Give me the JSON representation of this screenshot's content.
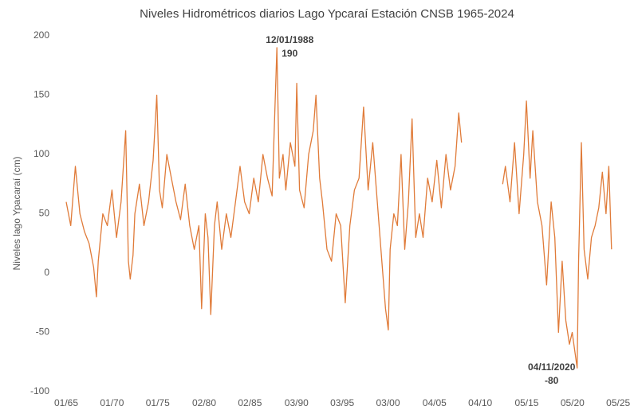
{
  "chart_data": {
    "type": "line",
    "title": "Niveles Hidrométricos diarios Lago Ypcaraí Estación CNSB 1965-2024",
    "y_label": "Niveles lago Ypacaraí (cm)",
    "x": [
      1965.0,
      1965.5,
      1966.0,
      1966.5,
      1967.0,
      1967.5,
      1968.0,
      1968.3,
      1968.5,
      1969.0,
      1969.5,
      1970.0,
      1970.5,
      1971.0,
      1971.5,
      1971.8,
      1972.0,
      1972.3,
      1972.5,
      1973.0,
      1973.5,
      1974.0,
      1974.5,
      1974.9,
      1975.2,
      1975.5,
      1976.0,
      1976.5,
      1977.0,
      1977.5,
      1978.0,
      1978.5,
      1979.0,
      1979.5,
      1979.8,
      1980.2,
      1980.5,
      1980.8,
      1981.2,
      1981.5,
      1982.0,
      1982.5,
      1983.0,
      1983.5,
      1984.0,
      1984.5,
      1985.0,
      1985.5,
      1986.0,
      1986.5,
      1987.0,
      1987.5,
      1988.03,
      1988.3,
      1988.7,
      1989.0,
      1989.5,
      1990.0,
      1990.2,
      1990.5,
      1991.0,
      1991.5,
      1992.0,
      1992.3,
      1992.7,
      1993.0,
      1993.5,
      1994.0,
      1994.5,
      1995.0,
      1995.5,
      1996.0,
      1996.5,
      1997.0,
      1997.5,
      1998.0,
      1998.5,
      1999.0,
      1999.5,
      1999.9,
      2000.2,
      2000.4,
      2000.8,
      2001.2,
      2001.6,
      2002.0,
      2002.4,
      2002.8,
      2003.2,
      2003.6,
      2004.0,
      2004.5,
      2005.0,
      2005.5,
      2006.0,
      2006.5,
      2007.0,
      2007.5,
      2007.9,
      2008.2,
      2010.5,
      2012.7,
      2013.0,
      2013.5,
      2014.0,
      2014.5,
      2015.0,
      2015.3,
      2015.7,
      2016.0,
      2016.5,
      2017.0,
      2017.5,
      2018.0,
      2018.4,
      2018.8,
      2019.2,
      2019.6,
      2020.0,
      2020.3,
      2020.84,
      2021.0,
      2021.3,
      2021.6,
      2022.0,
      2022.4,
      2022.8,
      2023.2,
      2023.6,
      2024.0,
      2024.3,
      2024.6
    ],
    "series": [
      {
        "name": "Nivel",
        "color": "#e07b39",
        "values": [
          60,
          40,
          90,
          50,
          35,
          25,
          5,
          -20,
          10,
          50,
          40,
          70,
          30,
          60,
          120,
          10,
          -5,
          15,
          50,
          75,
          40,
          60,
          95,
          150,
          70,
          55,
          100,
          80,
          60,
          45,
          75,
          40,
          20,
          40,
          -30,
          50,
          30,
          -35,
          40,
          60,
          20,
          50,
          30,
          60,
          90,
          60,
          50,
          80,
          60,
          100,
          80,
          65,
          190,
          80,
          100,
          70,
          110,
          90,
          160,
          70,
          55,
          100,
          120,
          150,
          80,
          60,
          20,
          10,
          50,
          40,
          -25,
          40,
          70,
          80,
          140,
          70,
          110,
          60,
          10,
          -30,
          -48,
          20,
          50,
          40,
          100,
          20,
          60,
          130,
          30,
          50,
          30,
          80,
          60,
          95,
          55,
          100,
          70,
          90,
          135,
          110,
          null,
          75,
          90,
          60,
          110,
          50,
          100,
          145,
          80,
          120,
          60,
          40,
          -10,
          60,
          30,
          -50,
          10,
          -40,
          -60,
          -50,
          -80,
          10,
          110,
          20,
          -5,
          30,
          40,
          55,
          85,
          50,
          90,
          20
        ]
      }
    ],
    "xlim": [
      1965.0,
      2025.4
    ],
    "xticks": [
      {
        "value": 1965.0,
        "label": "01/65"
      },
      {
        "value": 1970.0,
        "label": "01/70"
      },
      {
        "value": 1975.0,
        "label": "01/75"
      },
      {
        "value": 1980.08,
        "label": "02/80"
      },
      {
        "value": 1985.08,
        "label": "02/85"
      },
      {
        "value": 1990.17,
        "label": "03/90"
      },
      {
        "value": 1995.17,
        "label": "03/95"
      },
      {
        "value": 2000.17,
        "label": "03/00"
      },
      {
        "value": 2005.25,
        "label": "04/05"
      },
      {
        "value": 2010.25,
        "label": "04/10"
      },
      {
        "value": 2015.33,
        "label": "05/15"
      },
      {
        "value": 2020.33,
        "label": "05/20"
      },
      {
        "value": 2025.33,
        "label": "05/25"
      }
    ],
    "ylim": [
      -100,
      200
    ],
    "yticks": [
      -100,
      -50,
      0,
      50,
      100,
      150,
      200
    ],
    "grid": false,
    "annotations": [
      {
        "label": "12/01/1988",
        "x": 1988.03,
        "value": 190
      },
      {
        "label": "04/11/2020",
        "x": 2020.84,
        "value": -80
      }
    ]
  }
}
